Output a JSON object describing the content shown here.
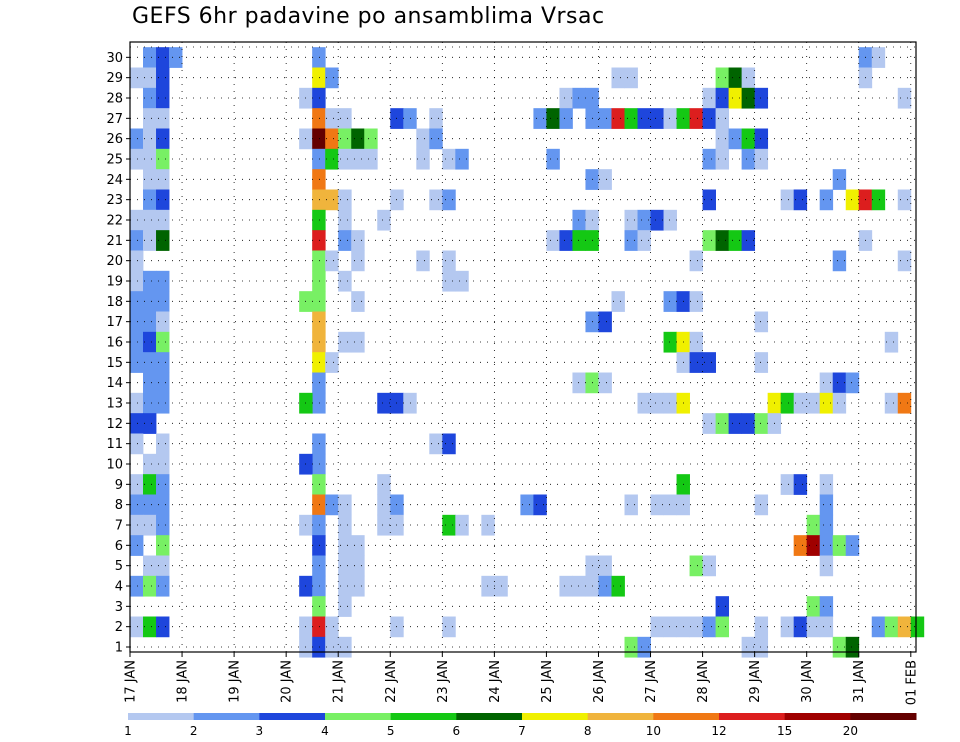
{
  "chart_data": {
    "type": "heatmap",
    "title": "GEFS 6hr padavine po ansamblima Vrsac",
    "x_ticks": [
      "17 JAN",
      "18 JAN",
      "19 JAN",
      "20 JAN",
      "21 JAN",
      "22 JAN",
      "23 JAN",
      "24 JAN",
      "25 JAN",
      "26 JAN",
      "27 JAN",
      "28 JAN",
      "29 JAN",
      "30 JAN",
      "31 JAN",
      "01 FEB"
    ],
    "y_ticks": [
      1,
      2,
      3,
      4,
      5,
      6,
      7,
      8,
      9,
      10,
      11,
      12,
      13,
      14,
      15,
      16,
      17,
      18,
      19,
      20,
      21,
      22,
      23,
      24,
      25,
      26,
      27,
      28,
      29,
      30
    ],
    "grid": true,
    "legend_labels": [
      "1",
      "2",
      "3",
      "4",
      "5",
      "6",
      "7",
      "8",
      "10",
      "12",
      "15",
      "20"
    ],
    "levels": [
      1,
      2,
      3,
      4,
      5,
      6,
      7,
      8,
      10,
      12,
      15,
      20
    ],
    "colors": [
      "#b4c8f0",
      "#6496f0",
      "#1e46dc",
      "#78f064",
      "#14c814",
      "#006400",
      "#f0f000",
      "#f0b43c",
      "#f07814",
      "#dc1e1e",
      "#a00000",
      "#640000"
    ],
    "time_step_hours": 6,
    "x_start": "17 JAN 00Z",
    "cells": [
      [
        30,
        1,
        2
      ],
      [
        30,
        2,
        3
      ],
      [
        30,
        3,
        2
      ],
      [
        30,
        14,
        2
      ],
      [
        30,
        56,
        2
      ],
      [
        30,
        57,
        1
      ],
      [
        29,
        0,
        1
      ],
      [
        29,
        1,
        1
      ],
      [
        29,
        2,
        3
      ],
      [
        29,
        14,
        7
      ],
      [
        29,
        15,
        2
      ],
      [
        29,
        37,
        1
      ],
      [
        29,
        38,
        1
      ],
      [
        29,
        45,
        4
      ],
      [
        29,
        46,
        6
      ],
      [
        29,
        47,
        1
      ],
      [
        29,
        56,
        1
      ],
      [
        28,
        1,
        2
      ],
      [
        28,
        2,
        3
      ],
      [
        28,
        13,
        1
      ],
      [
        28,
        14,
        3
      ],
      [
        28,
        33,
        1
      ],
      [
        28,
        34,
        2
      ],
      [
        28,
        35,
        2
      ],
      [
        28,
        44,
        1
      ],
      [
        28,
        45,
        3
      ],
      [
        28,
        46,
        7
      ],
      [
        28,
        47,
        6
      ],
      [
        28,
        48,
        3
      ],
      [
        28,
        59,
        1
      ],
      [
        27,
        1,
        1
      ],
      [
        27,
        2,
        1
      ],
      [
        27,
        14,
        9
      ],
      [
        27,
        15,
        1
      ],
      [
        27,
        16,
        1
      ],
      [
        27,
        20,
        3
      ],
      [
        27,
        21,
        2
      ],
      [
        27,
        23,
        1
      ],
      [
        27,
        31,
        2
      ],
      [
        27,
        32,
        6
      ],
      [
        27,
        33,
        2
      ],
      [
        27,
        35,
        2
      ],
      [
        27,
        36,
        2
      ],
      [
        27,
        37,
        10
      ],
      [
        27,
        38,
        5
      ],
      [
        27,
        39,
        3
      ],
      [
        27,
        40,
        3
      ],
      [
        27,
        41,
        1
      ],
      [
        27,
        42,
        5
      ],
      [
        27,
        43,
        10
      ],
      [
        27,
        44,
        3
      ],
      [
        27,
        45,
        1
      ],
      [
        26,
        0,
        2
      ],
      [
        26,
        1,
        1
      ],
      [
        26,
        2,
        3
      ],
      [
        26,
        13,
        1
      ],
      [
        26,
        14,
        12
      ],
      [
        26,
        15,
        9
      ],
      [
        26,
        16,
        4
      ],
      [
        26,
        17,
        6
      ],
      [
        26,
        18,
        4
      ],
      [
        26,
        22,
        1
      ],
      [
        26,
        23,
        2
      ],
      [
        26,
        45,
        1
      ],
      [
        26,
        46,
        2
      ],
      [
        26,
        47,
        5
      ],
      [
        26,
        48,
        3
      ],
      [
        25,
        0,
        1
      ],
      [
        25,
        1,
        1
      ],
      [
        25,
        2,
        4
      ],
      [
        25,
        14,
        2
      ],
      [
        25,
        15,
        5
      ],
      [
        25,
        16,
        1
      ],
      [
        25,
        17,
        1
      ],
      [
        25,
        18,
        1
      ],
      [
        25,
        22,
        1
      ],
      [
        25,
        24,
        1
      ],
      [
        25,
        25,
        2
      ],
      [
        25,
        32,
        2
      ],
      [
        25,
        44,
        2
      ],
      [
        25,
        45,
        1
      ],
      [
        25,
        47,
        2
      ],
      [
        25,
        48,
        1
      ],
      [
        24,
        1,
        1
      ],
      [
        24,
        2,
        1
      ],
      [
        24,
        14,
        9
      ],
      [
        24,
        35,
        2
      ],
      [
        24,
        36,
        1
      ],
      [
        24,
        54,
        2
      ],
      [
        23,
        1,
        2
      ],
      [
        23,
        2,
        3
      ],
      [
        23,
        14,
        8
      ],
      [
        23,
        15,
        8
      ],
      [
        23,
        16,
        1
      ],
      [
        23,
        20,
        1
      ],
      [
        23,
        23,
        1
      ],
      [
        23,
        24,
        2
      ],
      [
        23,
        44,
        3
      ],
      [
        23,
        50,
        1
      ],
      [
        23,
        51,
        3
      ],
      [
        23,
        53,
        2
      ],
      [
        23,
        55,
        7
      ],
      [
        23,
        56,
        10
      ],
      [
        23,
        57,
        5
      ],
      [
        23,
        59,
        1
      ],
      [
        22,
        0,
        1
      ],
      [
        22,
        1,
        1
      ],
      [
        22,
        2,
        1
      ],
      [
        22,
        14,
        5
      ],
      [
        22,
        16,
        1
      ],
      [
        22,
        19,
        1
      ],
      [
        22,
        34,
        2
      ],
      [
        22,
        35,
        1
      ],
      [
        22,
        38,
        1
      ],
      [
        22,
        39,
        2
      ],
      [
        22,
        40,
        3
      ],
      [
        22,
        41,
        1
      ],
      [
        21,
        0,
        2
      ],
      [
        21,
        1,
        1
      ],
      [
        21,
        2,
        6
      ],
      [
        21,
        14,
        10
      ],
      [
        21,
        16,
        2
      ],
      [
        21,
        17,
        1
      ],
      [
        21,
        32,
        1
      ],
      [
        21,
        33,
        3
      ],
      [
        21,
        34,
        5
      ],
      [
        21,
        35,
        5
      ],
      [
        21,
        38,
        2
      ],
      [
        21,
        39,
        1
      ],
      [
        21,
        44,
        4
      ],
      [
        21,
        45,
        6
      ],
      [
        21,
        46,
        5
      ],
      [
        21,
        47,
        3
      ],
      [
        21,
        56,
        1
      ],
      [
        20,
        0,
        1
      ],
      [
        20,
        14,
        4
      ],
      [
        20,
        15,
        1
      ],
      [
        20,
        17,
        1
      ],
      [
        20,
        22,
        1
      ],
      [
        20,
        24,
        1
      ],
      [
        20,
        43,
        1
      ],
      [
        20,
        54,
        2
      ],
      [
        20,
        59,
        1
      ],
      [
        19,
        0,
        1
      ],
      [
        19,
        1,
        2
      ],
      [
        19,
        2,
        2
      ],
      [
        19,
        14,
        4
      ],
      [
        19,
        16,
        1
      ],
      [
        19,
        24,
        1
      ],
      [
        19,
        25,
        1
      ],
      [
        18,
        0,
        2
      ],
      [
        18,
        1,
        2
      ],
      [
        18,
        2,
        2
      ],
      [
        18,
        13,
        4
      ],
      [
        18,
        14,
        4
      ],
      [
        18,
        17,
        1
      ],
      [
        18,
        37,
        1
      ],
      [
        18,
        41,
        2
      ],
      [
        18,
        42,
        3
      ],
      [
        18,
        43,
        1
      ],
      [
        17,
        0,
        2
      ],
      [
        17,
        1,
        2
      ],
      [
        17,
        2,
        1
      ],
      [
        17,
        14,
        8
      ],
      [
        17,
        35,
        2
      ],
      [
        17,
        36,
        3
      ],
      [
        17,
        48,
        1
      ],
      [
        16,
        0,
        2
      ],
      [
        16,
        1,
        3
      ],
      [
        16,
        2,
        4
      ],
      [
        16,
        14,
        8
      ],
      [
        16,
        16,
        1
      ],
      [
        16,
        17,
        1
      ],
      [
        16,
        41,
        5
      ],
      [
        16,
        42,
        7
      ],
      [
        16,
        43,
        1
      ],
      [
        16,
        58,
        1
      ],
      [
        15,
        0,
        2
      ],
      [
        15,
        1,
        2
      ],
      [
        15,
        2,
        2
      ],
      [
        15,
        14,
        7
      ],
      [
        15,
        15,
        1
      ],
      [
        15,
        42,
        1
      ],
      [
        15,
        43,
        3
      ],
      [
        15,
        44,
        3
      ],
      [
        15,
        48,
        1
      ],
      [
        14,
        1,
        2
      ],
      [
        14,
        2,
        2
      ],
      [
        14,
        14,
        2
      ],
      [
        14,
        34,
        1
      ],
      [
        14,
        35,
        4
      ],
      [
        14,
        36,
        1
      ],
      [
        14,
        53,
        1
      ],
      [
        14,
        54,
        3
      ],
      [
        14,
        55,
        2
      ],
      [
        13,
        0,
        1
      ],
      [
        13,
        1,
        2
      ],
      [
        13,
        2,
        2
      ],
      [
        13,
        14,
        2
      ],
      [
        13,
        13,
        5
      ],
      [
        13,
        19,
        3
      ],
      [
        13,
        20,
        3
      ],
      [
        13,
        21,
        1
      ],
      [
        13,
        39,
        1
      ],
      [
        13,
        40,
        1
      ],
      [
        13,
        41,
        1
      ],
      [
        13,
        42,
        7
      ],
      [
        13,
        49,
        7
      ],
      [
        13,
        50,
        5
      ],
      [
        13,
        51,
        1
      ],
      [
        13,
        52,
        1
      ],
      [
        13,
        53,
        7
      ],
      [
        13,
        54,
        1
      ],
      [
        13,
        58,
        1
      ],
      [
        13,
        59,
        9
      ],
      [
        12,
        0,
        3
      ],
      [
        12,
        1,
        3
      ],
      [
        12,
        44,
        1
      ],
      [
        12,
        45,
        4
      ],
      [
        12,
        46,
        3
      ],
      [
        12,
        47,
        3
      ],
      [
        12,
        48,
        4
      ],
      [
        12,
        49,
        1
      ],
      [
        11,
        0,
        1
      ],
      [
        11,
        2,
        1
      ],
      [
        11,
        14,
        2
      ],
      [
        11,
        23,
        1
      ],
      [
        11,
        24,
        3
      ],
      [
        10,
        1,
        1
      ],
      [
        10,
        2,
        1
      ],
      [
        10,
        14,
        2
      ],
      [
        10,
        13,
        3
      ],
      [
        9,
        0,
        1
      ],
      [
        9,
        1,
        5
      ],
      [
        9,
        2,
        2
      ],
      [
        9,
        14,
        4
      ],
      [
        9,
        19,
        1
      ],
      [
        9,
        42,
        5
      ],
      [
        9,
        50,
        1
      ],
      [
        9,
        51,
        3
      ],
      [
        9,
        53,
        1
      ],
      [
        8,
        0,
        2
      ],
      [
        8,
        1,
        2
      ],
      [
        8,
        2,
        2
      ],
      [
        8,
        14,
        9
      ],
      [
        8,
        15,
        2
      ],
      [
        8,
        16,
        1
      ],
      [
        8,
        19,
        1
      ],
      [
        8,
        20,
        2
      ],
      [
        8,
        30,
        2
      ],
      [
        8,
        31,
        3
      ],
      [
        8,
        38,
        1
      ],
      [
        8,
        40,
        1
      ],
      [
        8,
        41,
        1
      ],
      [
        8,
        42,
        1
      ],
      [
        8,
        48,
        1
      ],
      [
        8,
        53,
        2
      ],
      [
        7,
        0,
        1
      ],
      [
        7,
        1,
        1
      ],
      [
        7,
        2,
        2
      ],
      [
        7,
        13,
        1
      ],
      [
        7,
        14,
        2
      ],
      [
        7,
        16,
        1
      ],
      [
        7,
        19,
        1
      ],
      [
        7,
        20,
        1
      ],
      [
        7,
        24,
        5
      ],
      [
        7,
        25,
        1
      ],
      [
        7,
        27,
        1
      ],
      [
        7,
        52,
        4
      ],
      [
        7,
        53,
        2
      ],
      [
        6,
        0,
        2
      ],
      [
        6,
        2,
        4
      ],
      [
        6,
        14,
        3
      ],
      [
        6,
        16,
        1
      ],
      [
        6,
        17,
        1
      ],
      [
        6,
        51,
        9
      ],
      [
        6,
        52,
        11
      ],
      [
        6,
        53,
        2
      ],
      [
        6,
        54,
        4
      ],
      [
        6,
        55,
        2
      ],
      [
        5,
        1,
        1
      ],
      [
        5,
        2,
        1
      ],
      [
        5,
        14,
        2
      ],
      [
        5,
        16,
        1
      ],
      [
        5,
        17,
        1
      ],
      [
        5,
        35,
        1
      ],
      [
        5,
        36,
        1
      ],
      [
        5,
        43,
        4
      ],
      [
        5,
        44,
        1
      ],
      [
        5,
        53,
        1
      ],
      [
        4,
        0,
        2
      ],
      [
        4,
        1,
        4
      ],
      [
        4,
        2,
        2
      ],
      [
        4,
        13,
        3
      ],
      [
        4,
        14,
        2
      ],
      [
        4,
        16,
        1
      ],
      [
        4,
        17,
        1
      ],
      [
        4,
        27,
        1
      ],
      [
        4,
        28,
        1
      ],
      [
        4,
        33,
        1
      ],
      [
        4,
        34,
        1
      ],
      [
        4,
        35,
        1
      ],
      [
        4,
        36,
        2
      ],
      [
        4,
        37,
        5
      ],
      [
        3,
        14,
        4
      ],
      [
        3,
        16,
        1
      ],
      [
        3,
        45,
        3
      ],
      [
        3,
        52,
        4
      ],
      [
        3,
        53,
        2
      ],
      [
        2,
        0,
        1
      ],
      [
        2,
        1,
        5
      ],
      [
        2,
        2,
        3
      ],
      [
        2,
        13,
        1
      ],
      [
        2,
        14,
        10
      ],
      [
        2,
        15,
        1
      ],
      [
        2,
        20,
        1
      ],
      [
        2,
        24,
        1
      ],
      [
        2,
        40,
        1
      ],
      [
        2,
        41,
        1
      ],
      [
        2,
        42,
        1
      ],
      [
        2,
        43,
        1
      ],
      [
        2,
        44,
        2
      ],
      [
        2,
        45,
        4
      ],
      [
        2,
        48,
        1
      ],
      [
        2,
        50,
        1
      ],
      [
        2,
        51,
        3
      ],
      [
        2,
        52,
        1
      ],
      [
        2,
        53,
        1
      ],
      [
        2,
        57,
        2
      ],
      [
        2,
        58,
        4
      ],
      [
        2,
        59,
        8
      ],
      [
        2,
        60,
        5
      ],
      [
        1,
        13,
        1
      ],
      [
        1,
        14,
        3
      ],
      [
        1,
        15,
        1
      ],
      [
        1,
        16,
        1
      ],
      [
        1,
        38,
        4
      ],
      [
        1,
        39,
        2
      ],
      [
        1,
        47,
        1
      ],
      [
        1,
        48,
        1
      ],
      [
        1,
        54,
        4
      ],
      [
        1,
        55,
        6
      ]
    ]
  }
}
